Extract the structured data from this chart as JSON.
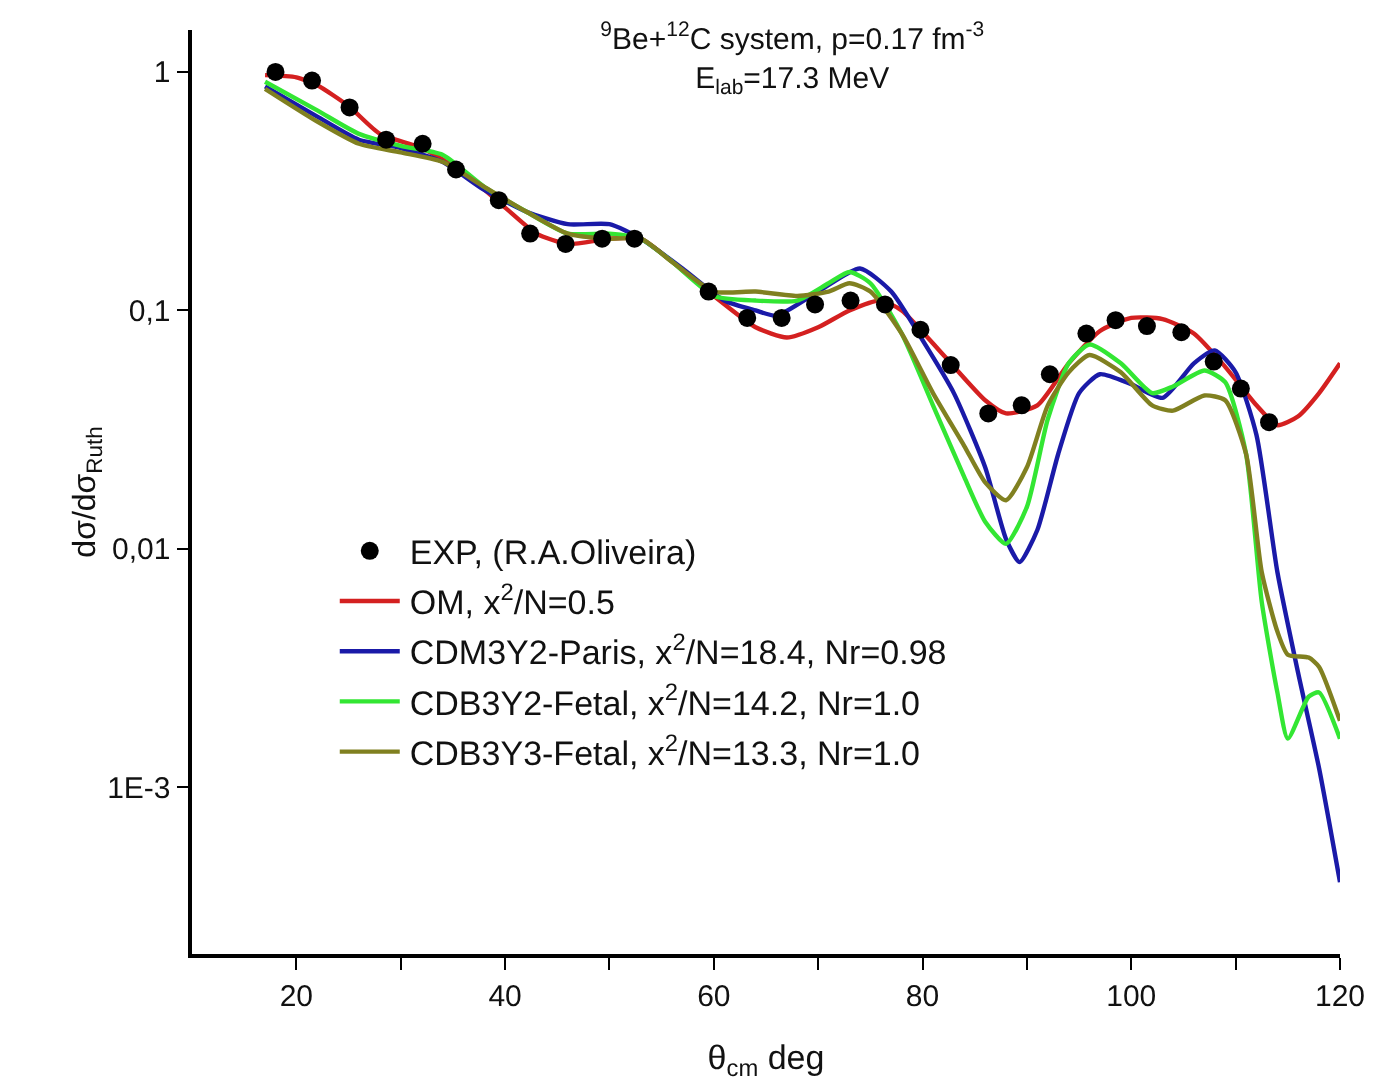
{
  "chart_data": {
    "type": "line",
    "title": "$^{9}$Be+$^{12}$C system, p=0.17 fm$^{-3}$",
    "subtitle": "E$_{lab}$=17.3 MeV",
    "xlabel": "θ$_{cm}$ deg",
    "ylabel": "dσ/dσ$_{Ruth}$",
    "log": "y",
    "grid": false,
    "legend": "bottom left",
    "line_style": "solid",
    "xlim": [
      10,
      120
    ],
    "xticks": [
      20,
      {
        "value": 30,
        "label": null
      },
      40,
      {
        "value": 50,
        "label": null
      },
      60,
      {
        "value": 70,
        "label": null
      },
      80,
      {
        "value": 90,
        "label": null
      },
      100,
      {
        "value": 110,
        "label": null
      },
      120
    ],
    "ylim": [
      0.0002,
      1.5
    ],
    "yticks": [
      {
        "value": 0.001,
        "label": "1E-3"
      },
      {
        "value": 0.01,
        "label": "0,01"
      },
      {
        "value": 0.1,
        "label": "0,1"
      },
      1
    ],
    "series": [
      {
        "name": "EXP, (R.A.Oliveira)",
        "type": "scatter",
        "marker": "circle",
        "color": "#000000",
        "x": [
          18.0,
          21.5,
          25.1,
          28.6,
          32.1,
          35.3,
          39.4,
          42.4,
          45.8,
          49.3,
          52.4,
          59.5,
          63.2,
          66.5,
          69.7,
          73.1,
          76.4,
          79.8,
          82.7,
          86.3,
          89.5,
          92.2,
          95.7,
          98.5,
          101.5,
          104.8,
          107.9,
          110.5,
          113.2
        ],
        "values": [
          1.0,
          0.92,
          0.71,
          0.52,
          0.5,
          0.39,
          0.29,
          0.21,
          0.19,
          0.2,
          0.2,
          0.12,
          0.093,
          0.093,
          0.106,
          0.11,
          0.106,
          0.083,
          0.059,
          0.037,
          0.04,
          0.054,
          0.08,
          0.091,
          0.086,
          0.081,
          0.061,
          0.047,
          0.034
        ]
      },
      {
        "name": "OM, x$^{2}$/N=0.5",
        "color": "#d42020",
        "x": [
          17,
          20,
          22,
          25,
          28,
          32,
          36,
          40,
          43,
          46,
          50,
          53,
          56,
          60,
          64,
          67,
          70,
          73,
          76,
          78,
          82,
          86,
          88,
          91,
          94,
          97,
          100,
          103,
          106,
          109,
          112,
          114,
          116,
          118,
          120
        ],
        "values": [
          0.97,
          0.95,
          0.88,
          0.72,
          0.55,
          0.48,
          0.38,
          0.27,
          0.21,
          0.19,
          0.2,
          0.2,
          0.16,
          0.115,
          0.085,
          0.077,
          0.085,
          0.1,
          0.11,
          0.1,
          0.065,
          0.042,
          0.037,
          0.04,
          0.06,
          0.082,
          0.093,
          0.092,
          0.08,
          0.058,
          0.04,
          0.033,
          0.036,
          0.045,
          0.06
        ]
      },
      {
        "name": "CDM3Y2-Paris, x$^{2}$/N=18.4, Nr=0.98",
        "color": "#1a1aa8",
        "x": [
          17,
          22,
          26,
          30,
          34,
          38,
          42,
          46,
          50,
          53,
          57,
          61,
          64,
          66,
          70,
          74,
          77,
          80,
          83,
          86,
          88,
          89.3,
          91,
          93,
          95,
          97,
          100,
          103,
          106,
          108,
          110,
          112,
          114,
          116,
          118,
          120
        ],
        "values": [
          0.87,
          0.65,
          0.52,
          0.48,
          0.42,
          0.32,
          0.26,
          0.23,
          0.23,
          0.2,
          0.15,
          0.11,
          0.1,
          0.095,
          0.12,
          0.15,
          0.12,
          0.075,
          0.045,
          0.022,
          0.011,
          0.0088,
          0.012,
          0.025,
          0.045,
          0.054,
          0.049,
          0.043,
          0.06,
          0.068,
          0.055,
          0.03,
          0.008,
          0.003,
          0.0012,
          0.0004
        ]
      },
      {
        "name": "CDB3Y2-Fetal, x$^{2}$/N=14.2, Nr=1.0",
        "color": "#33e633",
        "x": [
          17,
          22,
          26,
          30,
          34,
          38,
          42,
          46,
          50,
          53,
          56,
          60,
          64,
          68,
          71,
          73,
          75,
          78,
          81,
          84,
          86,
          88,
          90,
          92,
          94,
          96,
          99,
          102,
          104,
          107,
          109,
          111,
          112.5,
          114,
          115,
          117,
          118,
          120
        ],
        "values": [
          0.91,
          0.69,
          0.55,
          0.49,
          0.45,
          0.33,
          0.26,
          0.21,
          0.21,
          0.2,
          0.16,
          0.115,
          0.11,
          0.11,
          0.13,
          0.145,
          0.13,
          0.08,
          0.04,
          0.02,
          0.013,
          0.0105,
          0.015,
          0.035,
          0.06,
          0.072,
          0.06,
          0.045,
          0.048,
          0.056,
          0.05,
          0.025,
          0.006,
          0.0025,
          0.0016,
          0.0024,
          0.0025,
          0.0016
        ]
      },
      {
        "name": "CDB3Y3-Fetal, x$^{2}$/N=13.3, Nr=1.0",
        "color": "#808020",
        "x": [
          17,
          22,
          26,
          30,
          34,
          38,
          42,
          46,
          50,
          53,
          56,
          60,
          64,
          68,
          71,
          73,
          75,
          78,
          81,
          84,
          86,
          88,
          90,
          92,
          94,
          96,
          99,
          102,
          104,
          107,
          109,
          111,
          112.5,
          114,
          115,
          117,
          118,
          120
        ],
        "values": [
          0.85,
          0.62,
          0.5,
          0.46,
          0.42,
          0.33,
          0.26,
          0.21,
          0.2,
          0.2,
          0.16,
          0.12,
          0.12,
          0.115,
          0.12,
          0.13,
          0.12,
          0.08,
          0.045,
          0.027,
          0.019,
          0.016,
          0.022,
          0.04,
          0.055,
          0.065,
          0.055,
          0.04,
          0.038,
          0.044,
          0.042,
          0.025,
          0.008,
          0.0045,
          0.0036,
          0.0035,
          0.0032,
          0.0019
        ]
      }
    ]
  }
}
